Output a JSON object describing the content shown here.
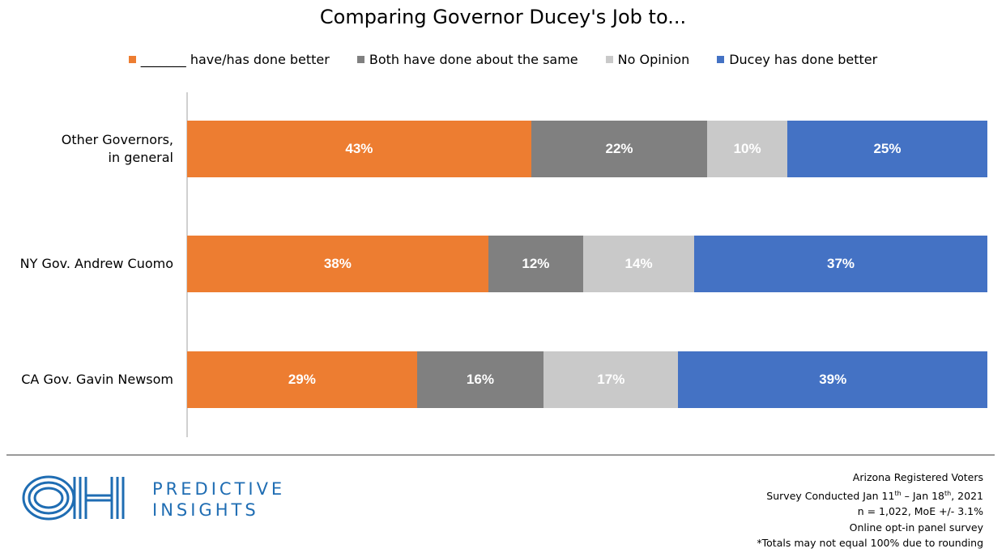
{
  "chart_data": {
    "type": "bar",
    "orientation": "horizontal",
    "stacked": true,
    "title": "Comparing Governor Ducey's Job to...",
    "categories": [
      "Other Governors, in general",
      "NY Gov. Andrew Cuomo",
      "CA Gov. Gavin Newsom"
    ],
    "category_lines": [
      [
        "Other Governors,",
        "in general"
      ],
      [
        "NY Gov. Andrew Cuomo"
      ],
      [
        "CA Gov. Gavin Newsom"
      ]
    ],
    "series": [
      {
        "name": "_______ have/has done better",
        "color": "#ED7D31",
        "values": [
          43,
          38,
          29
        ]
      },
      {
        "name": "Both have done about the same",
        "color": "#808080",
        "values": [
          22,
          12,
          16
        ]
      },
      {
        "name": "No Opinion",
        "color": "#C9C9C9",
        "values": [
          10,
          14,
          17
        ]
      },
      {
        "name": "Ducey has done better",
        "color": "#4472C4",
        "values": [
          25,
          37,
          39
        ]
      }
    ],
    "value_suffix": "%",
    "legend_position": "top",
    "grid": false
  },
  "footer": {
    "logo_mark": "OH",
    "logo_line1": "PREDICTIVE",
    "logo_line2": "INSIGHTS",
    "notes": [
      "Arizona Registered Voters",
      "Survey Conducted Jan 11th – Jan 18th, 2021",
      "n = 1,022, MoE +/- 3.1%",
      "Online opt-in panel survey",
      "*Totals may not equal 100% due to rounding"
    ]
  }
}
